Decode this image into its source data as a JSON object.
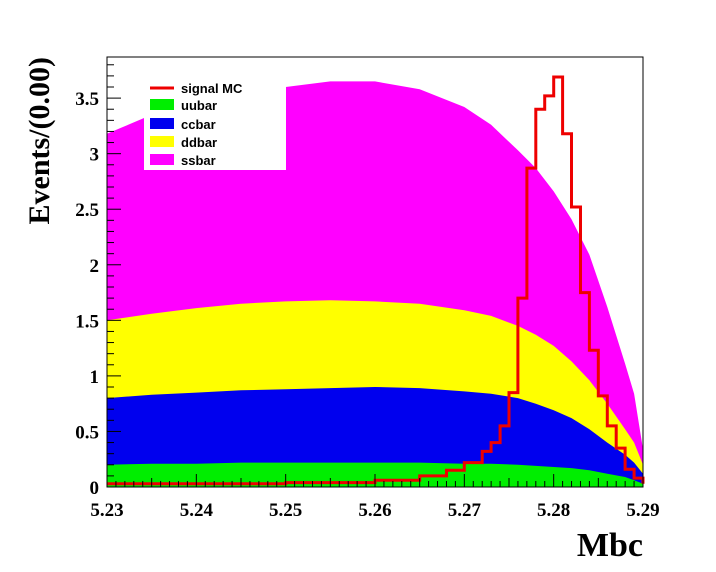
{
  "chart_data": {
    "type": "area",
    "title": "",
    "xlabel": "Mbc",
    "ylabel": "Events/(0.00)",
    "xlim": [
      5.23,
      5.29
    ],
    "ylim": [
      0,
      3.87
    ],
    "grid": false,
    "legend_position": "top-left",
    "x_ticks": [
      "5.23",
      "5.24",
      "5.25",
      "5.26",
      "5.27",
      "5.28",
      "5.29"
    ],
    "y_ticks": [
      "0",
      "0.5",
      "1",
      "1.5",
      "2",
      "2.5",
      "3",
      "3.5"
    ],
    "background_stack": {
      "x": [
        5.23,
        5.235,
        5.24,
        5.245,
        5.25,
        5.255,
        5.26,
        5.265,
        5.27,
        5.273,
        5.276,
        5.278,
        5.28,
        5.282,
        5.284,
        5.286,
        5.288,
        5.289,
        5.29
      ],
      "series": [
        {
          "name": "uubar",
          "color": "#00ee00",
          "values": [
            0.2,
            0.21,
            0.21,
            0.22,
            0.22,
            0.22,
            0.22,
            0.22,
            0.21,
            0.21,
            0.2,
            0.19,
            0.18,
            0.17,
            0.15,
            0.12,
            0.09,
            0.06,
            0.03
          ]
        },
        {
          "name": "ccbar",
          "color": "#0000ee",
          "values": [
            0.8,
            0.83,
            0.85,
            0.87,
            0.88,
            0.89,
            0.9,
            0.89,
            0.86,
            0.84,
            0.8,
            0.75,
            0.69,
            0.62,
            0.52,
            0.4,
            0.29,
            0.22,
            0.12
          ]
        },
        {
          "name": "ddbar",
          "color": "#ffff00",
          "values": [
            1.5,
            1.56,
            1.61,
            1.65,
            1.67,
            1.68,
            1.67,
            1.65,
            1.59,
            1.54,
            1.45,
            1.37,
            1.27,
            1.13,
            0.96,
            0.75,
            0.52,
            0.4,
            0.2
          ]
        },
        {
          "name": "ssbar",
          "color": "#ff00ff",
          "values": [
            3.18,
            3.35,
            3.45,
            3.52,
            3.6,
            3.65,
            3.65,
            3.58,
            3.42,
            3.26,
            3.03,
            2.87,
            2.66,
            2.41,
            2.09,
            1.62,
            1.11,
            0.84,
            0.34
          ]
        }
      ]
    },
    "signal": {
      "name": "signal MC",
      "color": "#ee0000",
      "x": [
        5.23,
        5.24,
        5.25,
        5.26,
        5.265,
        5.268,
        5.27,
        5.272,
        5.273,
        5.274,
        5.275,
        5.276,
        5.277,
        5.278,
        5.279,
        5.28,
        5.281,
        5.282,
        5.283,
        5.284,
        5.285,
        5.286,
        5.287,
        5.288,
        5.289,
        5.29
      ],
      "values": [
        0.03,
        0.03,
        0.04,
        0.06,
        0.1,
        0.15,
        0.22,
        0.32,
        0.4,
        0.55,
        0.85,
        1.7,
        2.87,
        3.4,
        3.52,
        3.69,
        3.18,
        2.52,
        1.75,
        1.23,
        0.82,
        0.55,
        0.35,
        0.16,
        0.08,
        0.03
      ]
    },
    "legend": [
      "signal MC",
      "uubar",
      "ccbar",
      "ddbar",
      "ssbar"
    ]
  }
}
